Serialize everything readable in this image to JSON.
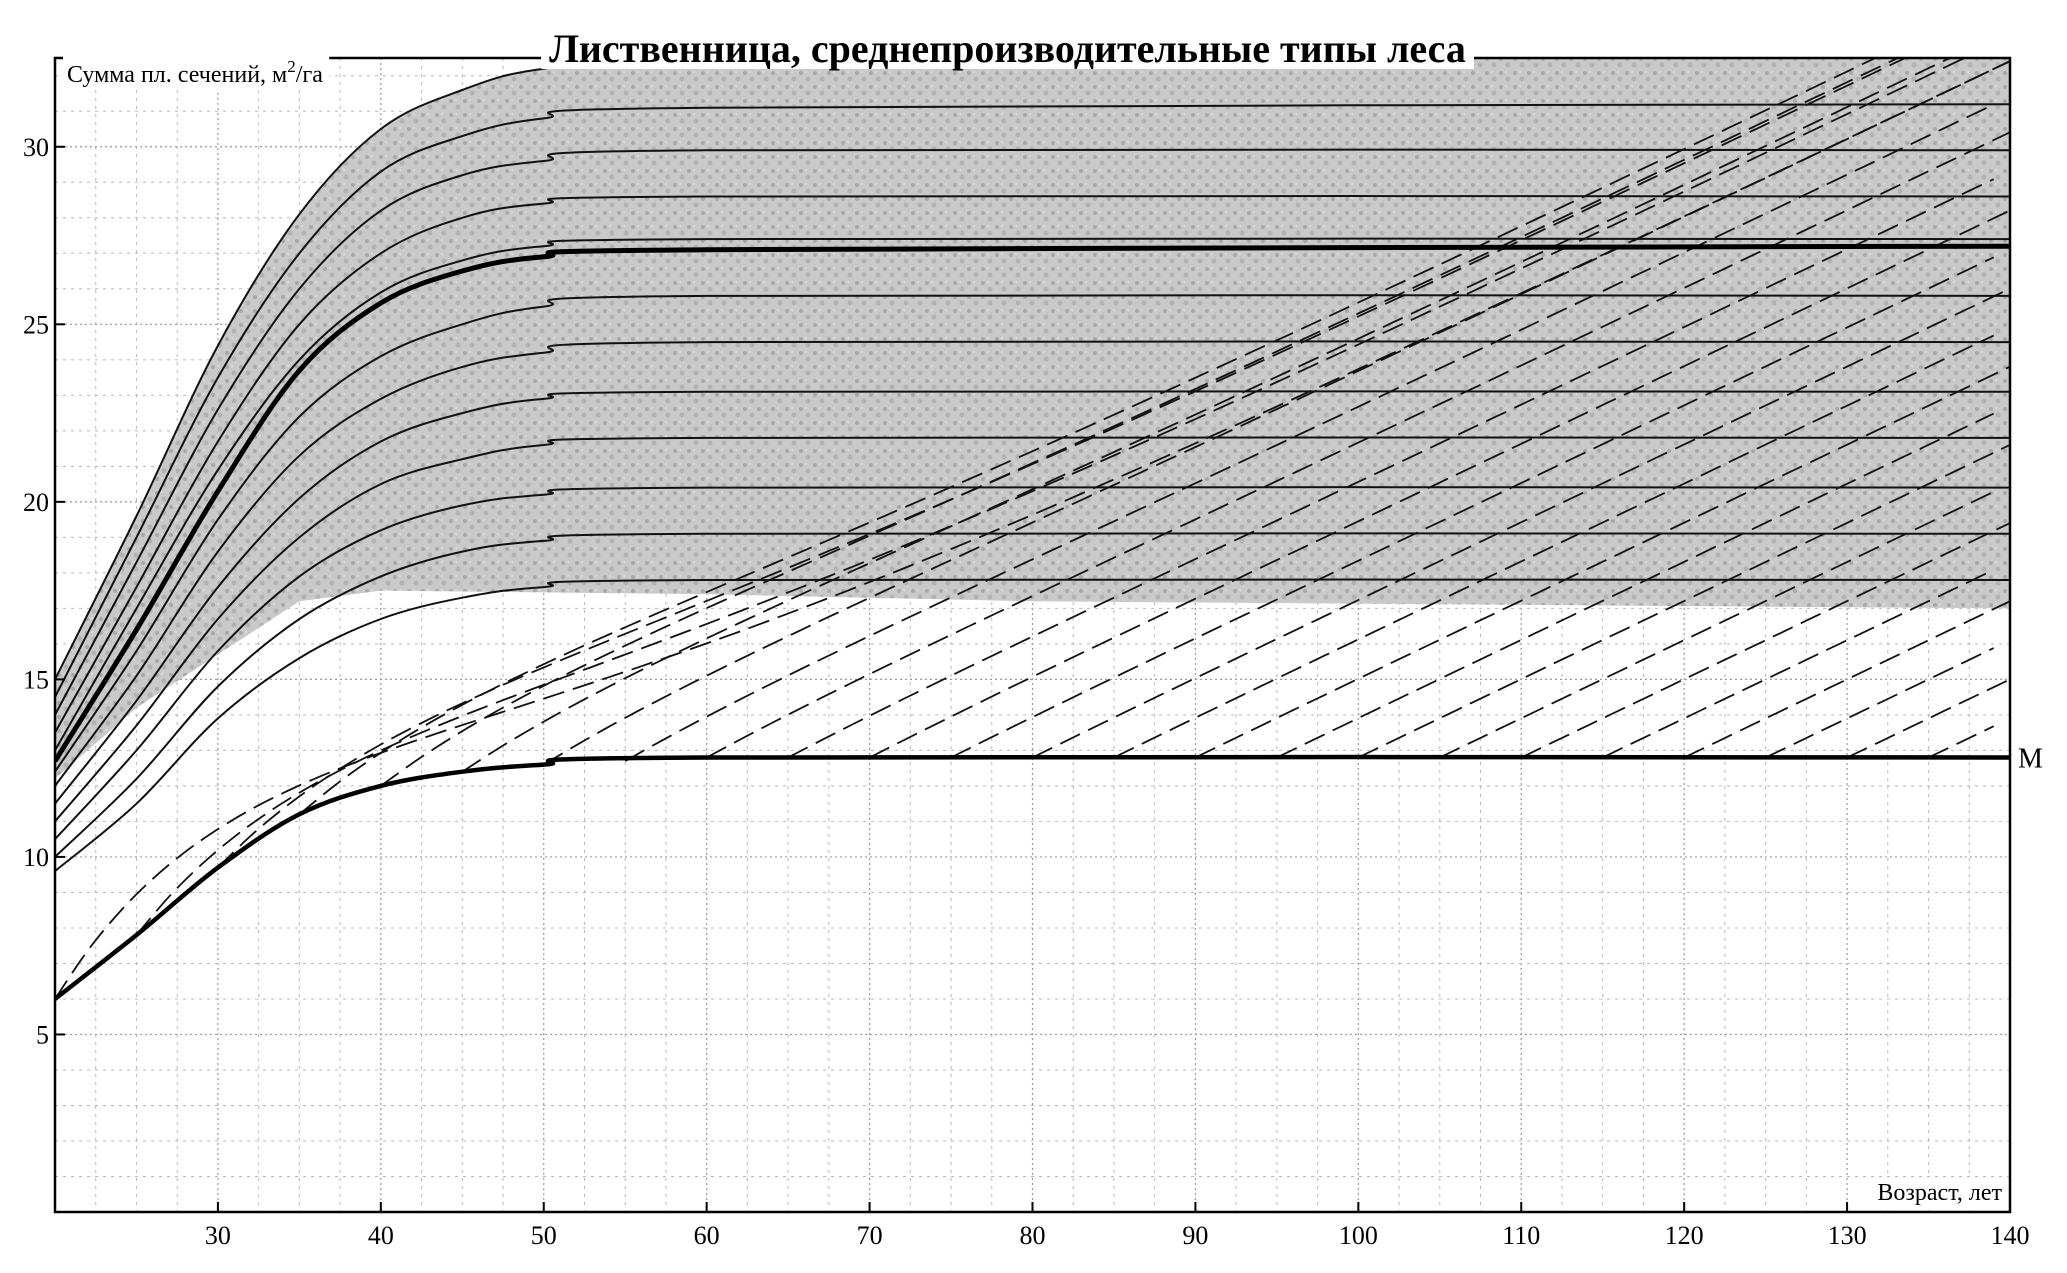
{
  "chart_data": {
    "type": "line",
    "title": "Лиственница, среднепроизводительные типы леса",
    "xlabel": "Возраст, лет",
    "ylabel_prefix": "Сумма пл. сечений, м",
    "ylabel_sup": "2",
    "ylabel_suffix": "/га",
    "x_ticks": [
      30,
      40,
      50,
      60,
      70,
      80,
      90,
      100,
      110,
      120,
      130,
      140
    ],
    "y_ticks": [
      5,
      10,
      15,
      20,
      25,
      30
    ],
    "xlim": [
      20,
      140
    ],
    "ylim": [
      0,
      32.5
    ],
    "grid": true,
    "shaded_band": {
      "upper": [
        [
          20,
          15.0
        ],
        [
          25,
          19.6
        ],
        [
          30,
          24.4
        ],
        [
          35,
          28.1
        ],
        [
          40,
          30.5
        ],
        [
          45,
          31.6
        ],
        [
          50,
          32.2
        ],
        [
          60,
          32.5
        ],
        [
          140,
          32.5
        ]
      ],
      "lower": [
        [
          20,
          12.2
        ],
        [
          25,
          14.2
        ],
        [
          30,
          15.7
        ],
        [
          35,
          17.2
        ],
        [
          40,
          17.5
        ],
        [
          60,
          17.4
        ],
        [
          80,
          17.2
        ],
        [
          140,
          17.0
        ]
      ]
    },
    "series": [
      {
        "points": [
          [
            20,
            15.0
          ],
          [
            25,
            19.6
          ],
          [
            30,
            24.4
          ],
          [
            35,
            28.1
          ],
          [
            40,
            30.5
          ],
          [
            45,
            31.6
          ],
          [
            50,
            32.2
          ],
          [
            60,
            32.5
          ],
          [
            140,
            32.5
          ]
        ]
      },
      {
        "points": [
          [
            20,
            14.5
          ],
          [
            25,
            19.0
          ],
          [
            30,
            23.5
          ],
          [
            35,
            27.0
          ],
          [
            40,
            29.3
          ],
          [
            45,
            30.3
          ],
          [
            50,
            30.8
          ],
          [
            60,
            31.1
          ],
          [
            140,
            31.2
          ]
        ]
      },
      {
        "points": [
          [
            20,
            14.0
          ],
          [
            25,
            18.3
          ],
          [
            30,
            22.6
          ],
          [
            35,
            26.0
          ],
          [
            40,
            28.2
          ],
          [
            45,
            29.2
          ],
          [
            50,
            29.6
          ],
          [
            60,
            29.9
          ],
          [
            140,
            29.9
          ]
        ]
      },
      {
        "points": [
          [
            20,
            13.5
          ],
          [
            25,
            17.6
          ],
          [
            30,
            21.7
          ],
          [
            35,
            25.0
          ],
          [
            40,
            27.0
          ],
          [
            45,
            28.0
          ],
          [
            50,
            28.4
          ],
          [
            60,
            28.6
          ],
          [
            140,
            28.6
          ]
        ]
      },
      {
        "points": [
          [
            20,
            13.0
          ],
          [
            25,
            17.0
          ],
          [
            30,
            20.9
          ],
          [
            35,
            24.0
          ],
          [
            40,
            25.9
          ],
          [
            45,
            26.8
          ],
          [
            50,
            27.2
          ],
          [
            60,
            27.4
          ],
          [
            140,
            27.4
          ]
        ]
      },
      {
        "name": "",
        "bold": true,
        "points": [
          [
            20,
            12.7
          ],
          [
            25,
            16.4
          ],
          [
            30,
            20.3
          ],
          [
            35,
            23.7
          ],
          [
            40,
            25.6
          ],
          [
            45,
            26.5
          ],
          [
            50,
            26.9
          ],
          [
            60,
            27.1
          ],
          [
            140,
            27.2
          ]
        ]
      },
      {
        "points": [
          [
            20,
            12.4
          ],
          [
            25,
            15.8
          ],
          [
            30,
            19.5
          ],
          [
            35,
            22.4
          ],
          [
            40,
            24.1
          ],
          [
            45,
            25.0
          ],
          [
            50,
            25.5
          ],
          [
            60,
            25.8
          ],
          [
            140,
            25.8
          ]
        ]
      },
      {
        "points": [
          [
            20,
            12.0
          ],
          [
            25,
            15.1
          ],
          [
            30,
            18.6
          ],
          [
            35,
            21.3
          ],
          [
            40,
            22.9
          ],
          [
            45,
            23.8
          ],
          [
            50,
            24.2
          ],
          [
            60,
            24.5
          ],
          [
            140,
            24.5
          ]
        ]
      },
      {
        "points": [
          [
            20,
            11.5
          ],
          [
            25,
            14.4
          ],
          [
            30,
            17.6
          ],
          [
            35,
            20.1
          ],
          [
            40,
            21.7
          ],
          [
            45,
            22.5
          ],
          [
            50,
            22.9
          ],
          [
            60,
            23.1
          ],
          [
            140,
            23.1
          ]
        ]
      },
      {
        "points": [
          [
            20,
            11.0
          ],
          [
            25,
            13.7
          ],
          [
            30,
            16.7
          ],
          [
            35,
            19.0
          ],
          [
            40,
            20.5
          ],
          [
            45,
            21.2
          ],
          [
            50,
            21.6
          ],
          [
            60,
            21.8
          ],
          [
            140,
            21.8
          ]
        ]
      },
      {
        "points": [
          [
            20,
            10.5
          ],
          [
            25,
            13.0
          ],
          [
            30,
            15.8
          ],
          [
            35,
            17.9
          ],
          [
            40,
            19.2
          ],
          [
            45,
            19.9
          ],
          [
            50,
            20.2
          ],
          [
            60,
            20.4
          ],
          [
            140,
            20.4
          ]
        ]
      },
      {
        "points": [
          [
            20,
            10.0
          ],
          [
            25,
            12.2
          ],
          [
            30,
            14.8
          ],
          [
            35,
            16.7
          ],
          [
            40,
            17.9
          ],
          [
            45,
            18.6
          ],
          [
            50,
            18.9
          ],
          [
            60,
            19.1
          ],
          [
            140,
            19.1
          ]
        ]
      },
      {
        "points": [
          [
            20,
            9.6
          ],
          [
            25,
            11.5
          ],
          [
            30,
            13.9
          ],
          [
            35,
            15.6
          ],
          [
            40,
            16.7
          ],
          [
            45,
            17.3
          ],
          [
            50,
            17.6
          ],
          [
            60,
            17.8
          ],
          [
            140,
            17.8
          ]
        ]
      },
      {
        "name": "M",
        "bold": true,
        "points": [
          [
            20,
            6.0
          ],
          [
            25,
            7.8
          ],
          [
            30,
            9.7
          ],
          [
            35,
            11.2
          ],
          [
            40,
            12.0
          ],
          [
            45,
            12.4
          ],
          [
            50,
            12.6
          ],
          [
            60,
            12.8
          ],
          [
            140,
            12.8
          ]
        ]
      }
    ],
    "dashed_guides": {
      "note_free": true,
      "start_x_every": 5,
      "rise_per_10_years": 2.2
    }
  }
}
